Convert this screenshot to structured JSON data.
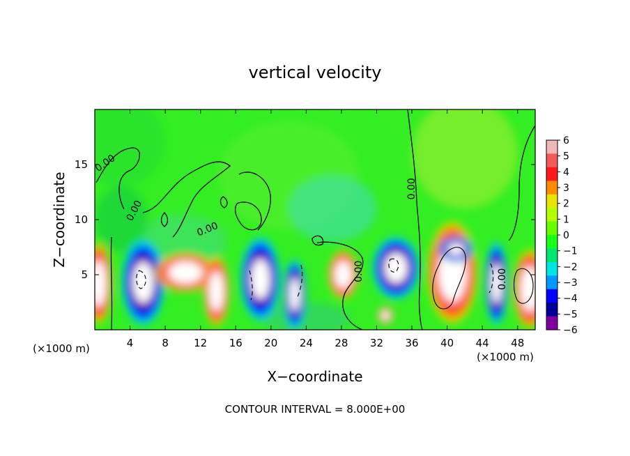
{
  "chart_data": {
    "type": "heatmap",
    "title": "vertical velocity",
    "xlabel": "X−coordinate",
    "ylabel": "Z−coordinate",
    "x_unit_left": "(×1000 m)",
    "x_unit_right": "(×1000 m)",
    "footer": "CONTOUR INTERVAL = 8.000E+00",
    "xlim": [
      0,
      50
    ],
    "ylim": [
      0,
      20
    ],
    "grid": false,
    "legend_placement": "right",
    "x_ticks": [
      {
        "value": 4,
        "label": "4"
      },
      {
        "value": 8,
        "label": "8"
      },
      {
        "value": 12,
        "label": "12"
      },
      {
        "value": 16,
        "label": "16"
      },
      {
        "value": 20,
        "label": "20"
      },
      {
        "value": 24,
        "label": "24"
      },
      {
        "value": 28,
        "label": "28"
      },
      {
        "value": 32,
        "label": "32"
      },
      {
        "value": 36,
        "label": "36"
      },
      {
        "value": 40,
        "label": "40"
      },
      {
        "value": 44,
        "label": "44"
      },
      {
        "value": 48,
        "label": "48"
      }
    ],
    "y_ticks": [
      {
        "value": 5,
        "label": "5"
      },
      {
        "value": 10,
        "label": "10"
      },
      {
        "value": 15,
        "label": "15"
      }
    ],
    "colorbar": {
      "min": -6,
      "max": 6,
      "labels": [
        "6",
        "5",
        "4",
        "3",
        "2",
        "1",
        "0",
        "−1",
        "−2",
        "−3",
        "−4",
        "−5",
        "−6"
      ],
      "colors": [
        "#f2b6b6",
        "#f25a5a",
        "#ff1a1a",
        "#ff8c00",
        "#e6e600",
        "#b3ff00",
        "#66ff00",
        "#1aff1a",
        "#00e673",
        "#00e6e6",
        "#0099ff",
        "#0000ff",
        "#000099",
        "#8000a0"
      ]
    },
    "contour_labels": [
      {
        "text": "0.00",
        "x": 1.2,
        "z": 15.1,
        "angle": -35
      },
      {
        "text": "0.00",
        "x": 4.5,
        "z": 10.8,
        "angle": -62
      },
      {
        "text": "0.00",
        "x": 12.8,
        "z": 9.1,
        "angle": -22
      },
      {
        "text": "0.00",
        "x": 30.0,
        "z": 5.3,
        "angle": -90
      },
      {
        "text": "0.00",
        "x": 36.0,
        "z": 12.8,
        "angle": -90
      },
      {
        "text": "0.00",
        "x": 46.3,
        "z": 4.6,
        "angle": -90
      }
    ],
    "features": [
      {
        "name": "updraft",
        "x": 0.4,
        "z": 4.2,
        "w": 3.2,
        "h": 7.5
      },
      {
        "name": "downdraft",
        "x": 5.5,
        "z": 4.3,
        "w": 5.0,
        "h": 8.0
      },
      {
        "name": "updraft",
        "x": 10.3,
        "z": 5.2,
        "w": 7.0,
        "h": 3.6
      },
      {
        "name": "updraft",
        "x": 13.8,
        "z": 3.5,
        "w": 3.0,
        "h": 6.5
      },
      {
        "name": "downdraft",
        "x": 18.8,
        "z": 4.6,
        "w": 4.6,
        "h": 7.8
      },
      {
        "name": "downdraft",
        "x": 22.7,
        "z": 3.2,
        "w": 2.6,
        "h": 6.5
      },
      {
        "name": "updraft",
        "x": 28.2,
        "z": 5.0,
        "w": 3.5,
        "h": 4.5
      },
      {
        "name": "downdraft",
        "x": 34.2,
        "z": 5.6,
        "w": 5.5,
        "h": 5.8
      },
      {
        "name": "updraft",
        "x": 40.6,
        "z": 5.2,
        "w": 5.8,
        "h": 9.5
      },
      {
        "name": "downdraft",
        "x": 45.6,
        "z": 4.2,
        "w": 2.6,
        "h": 7.8
      },
      {
        "name": "updraft",
        "x": 49.4,
        "z": 3.7,
        "w": 3.8,
        "h": 7.4
      },
      {
        "name": "updraft",
        "x": 33.0,
        "z": 1.3,
        "w": 1.8,
        "h": 1.6
      },
      {
        "name": "downdraft",
        "x": 41.0,
        "z": 7.3,
        "w": 4.0,
        "h": 2.4
      }
    ]
  }
}
